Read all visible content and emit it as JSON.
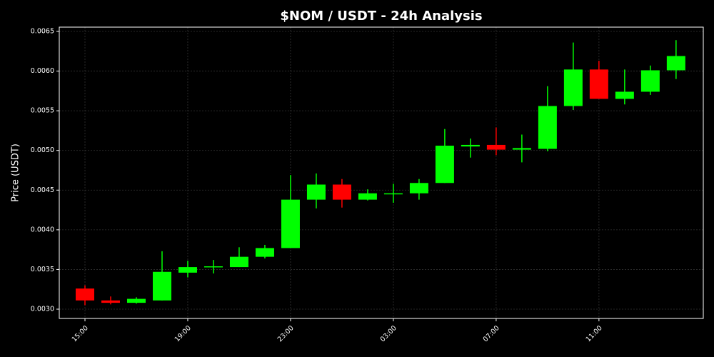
{
  "chart_data": {
    "type": "candlestick",
    "title": "$NOM / USDT - 24h Analysis",
    "y_label": "Price (USDT)",
    "categories": [
      "15:00",
      null,
      null,
      null,
      "19:00",
      null,
      null,
      null,
      "23:00",
      null,
      null,
      null,
      "03:00",
      null,
      null,
      null,
      "07:00",
      null,
      null,
      null,
      "11:00",
      null,
      null,
      null
    ],
    "open": [
      0.00326,
      0.00311,
      0.00308,
      0.00311,
      0.00346,
      0.00353,
      0.00353,
      0.00366,
      0.00377,
      0.00438,
      0.00457,
      0.00438,
      0.00445,
      0.00446,
      0.00459,
      0.00505,
      0.00507,
      0.00501,
      0.00502,
      0.00556,
      0.00602,
      0.00565,
      0.00574,
      0.00601
    ],
    "high": [
      0.0033,
      0.00316,
      0.00315,
      0.00373,
      0.00361,
      0.00362,
      0.00378,
      0.00381,
      0.00469,
      0.00471,
      0.00464,
      0.00451,
      0.00458,
      0.00464,
      0.00527,
      0.00515,
      0.00529,
      0.0052,
      0.00581,
      0.00636,
      0.00613,
      0.00602,
      0.00607,
      0.00639
    ],
    "low": [
      0.00305,
      0.00306,
      0.00307,
      0.00311,
      0.0034,
      0.00345,
      0.00353,
      0.00364,
      0.00377,
      0.00427,
      0.00428,
      0.00437,
      0.00434,
      0.00438,
      0.00459,
      0.00491,
      0.00494,
      0.00485,
      0.00499,
      0.00551,
      0.00565,
      0.00558,
      0.0057,
      0.0059
    ],
    "close": [
      0.00311,
      0.00308,
      0.00313,
      0.00347,
      0.00353,
      0.00354,
      0.00366,
      0.00377,
      0.00438,
      0.00457,
      0.00438,
      0.00446,
      0.00446,
      0.00459,
      0.00506,
      0.00507,
      0.00501,
      0.00503,
      0.00556,
      0.00602,
      0.00565,
      0.00574,
      0.00601,
      0.00619
    ],
    "up_color": "#00ff00",
    "down_color": "#ff0000",
    "ylim": [
      0.002883,
      0.006554
    ],
    "yticks": [
      {
        "value": 0.003,
        "label": "0.0030"
      },
      0.0035,
      {
        "value": 0.004,
        "label": "0.0040"
      },
      0.0045,
      {
        "value": 0.005,
        "label": "0.0050"
      },
      0.0055,
      {
        "value": 0.006,
        "label": "0.0060"
      },
      0.0065
    ],
    "grid": true
  }
}
